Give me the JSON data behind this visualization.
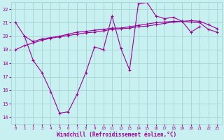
{
  "title": "",
  "xlabel": "Windchill (Refroidissement éolien,°C)",
  "ylabel": "",
  "bg_color": "#c8f0f0",
  "grid_color": "#aad8d8",
  "line_color": "#990099",
  "x_hours": [
    0,
    1,
    2,
    3,
    4,
    5,
    6,
    7,
    8,
    9,
    10,
    11,
    12,
    13,
    14,
    15,
    16,
    17,
    18,
    19,
    20,
    21,
    22,
    23
  ],
  "series1": [
    21.0,
    20.0,
    18.2,
    17.3,
    15.9,
    14.3,
    14.4,
    15.7,
    17.3,
    19.2,
    19.0,
    21.5,
    19.1,
    17.5,
    22.4,
    22.5,
    21.5,
    21.3,
    21.4,
    21.1,
    20.3,
    20.7,
    null,
    null
  ],
  "series2": [
    null,
    20.0,
    19.6,
    19.8,
    19.9,
    20.0,
    20.15,
    20.3,
    20.35,
    20.45,
    20.5,
    20.6,
    20.6,
    20.7,
    20.8,
    20.9,
    21.0,
    21.05,
    21.1,
    21.1,
    21.05,
    21.0,
    20.5,
    20.3
  ],
  "series3": [
    19.0,
    19.3,
    19.5,
    19.7,
    19.85,
    19.95,
    20.05,
    20.15,
    20.25,
    20.3,
    20.4,
    20.5,
    20.55,
    20.6,
    20.7,
    20.75,
    20.85,
    20.95,
    21.05,
    21.1,
    21.15,
    21.1,
    20.85,
    20.55
  ],
  "ylim": [
    13.5,
    22.5
  ],
  "xlim": [
    -0.5,
    23.5
  ],
  "yticks": [
    14,
    15,
    16,
    17,
    18,
    19,
    20,
    21,
    22
  ],
  "xtick_labels": [
    "0",
    "1",
    "2",
    "3",
    "4",
    "5",
    "6",
    "7",
    "8",
    "9",
    "10",
    "11",
    "12",
    "13",
    "14",
    "15",
    "16",
    "17",
    "18",
    "19",
    "20",
    "21",
    "22",
    "23"
  ]
}
